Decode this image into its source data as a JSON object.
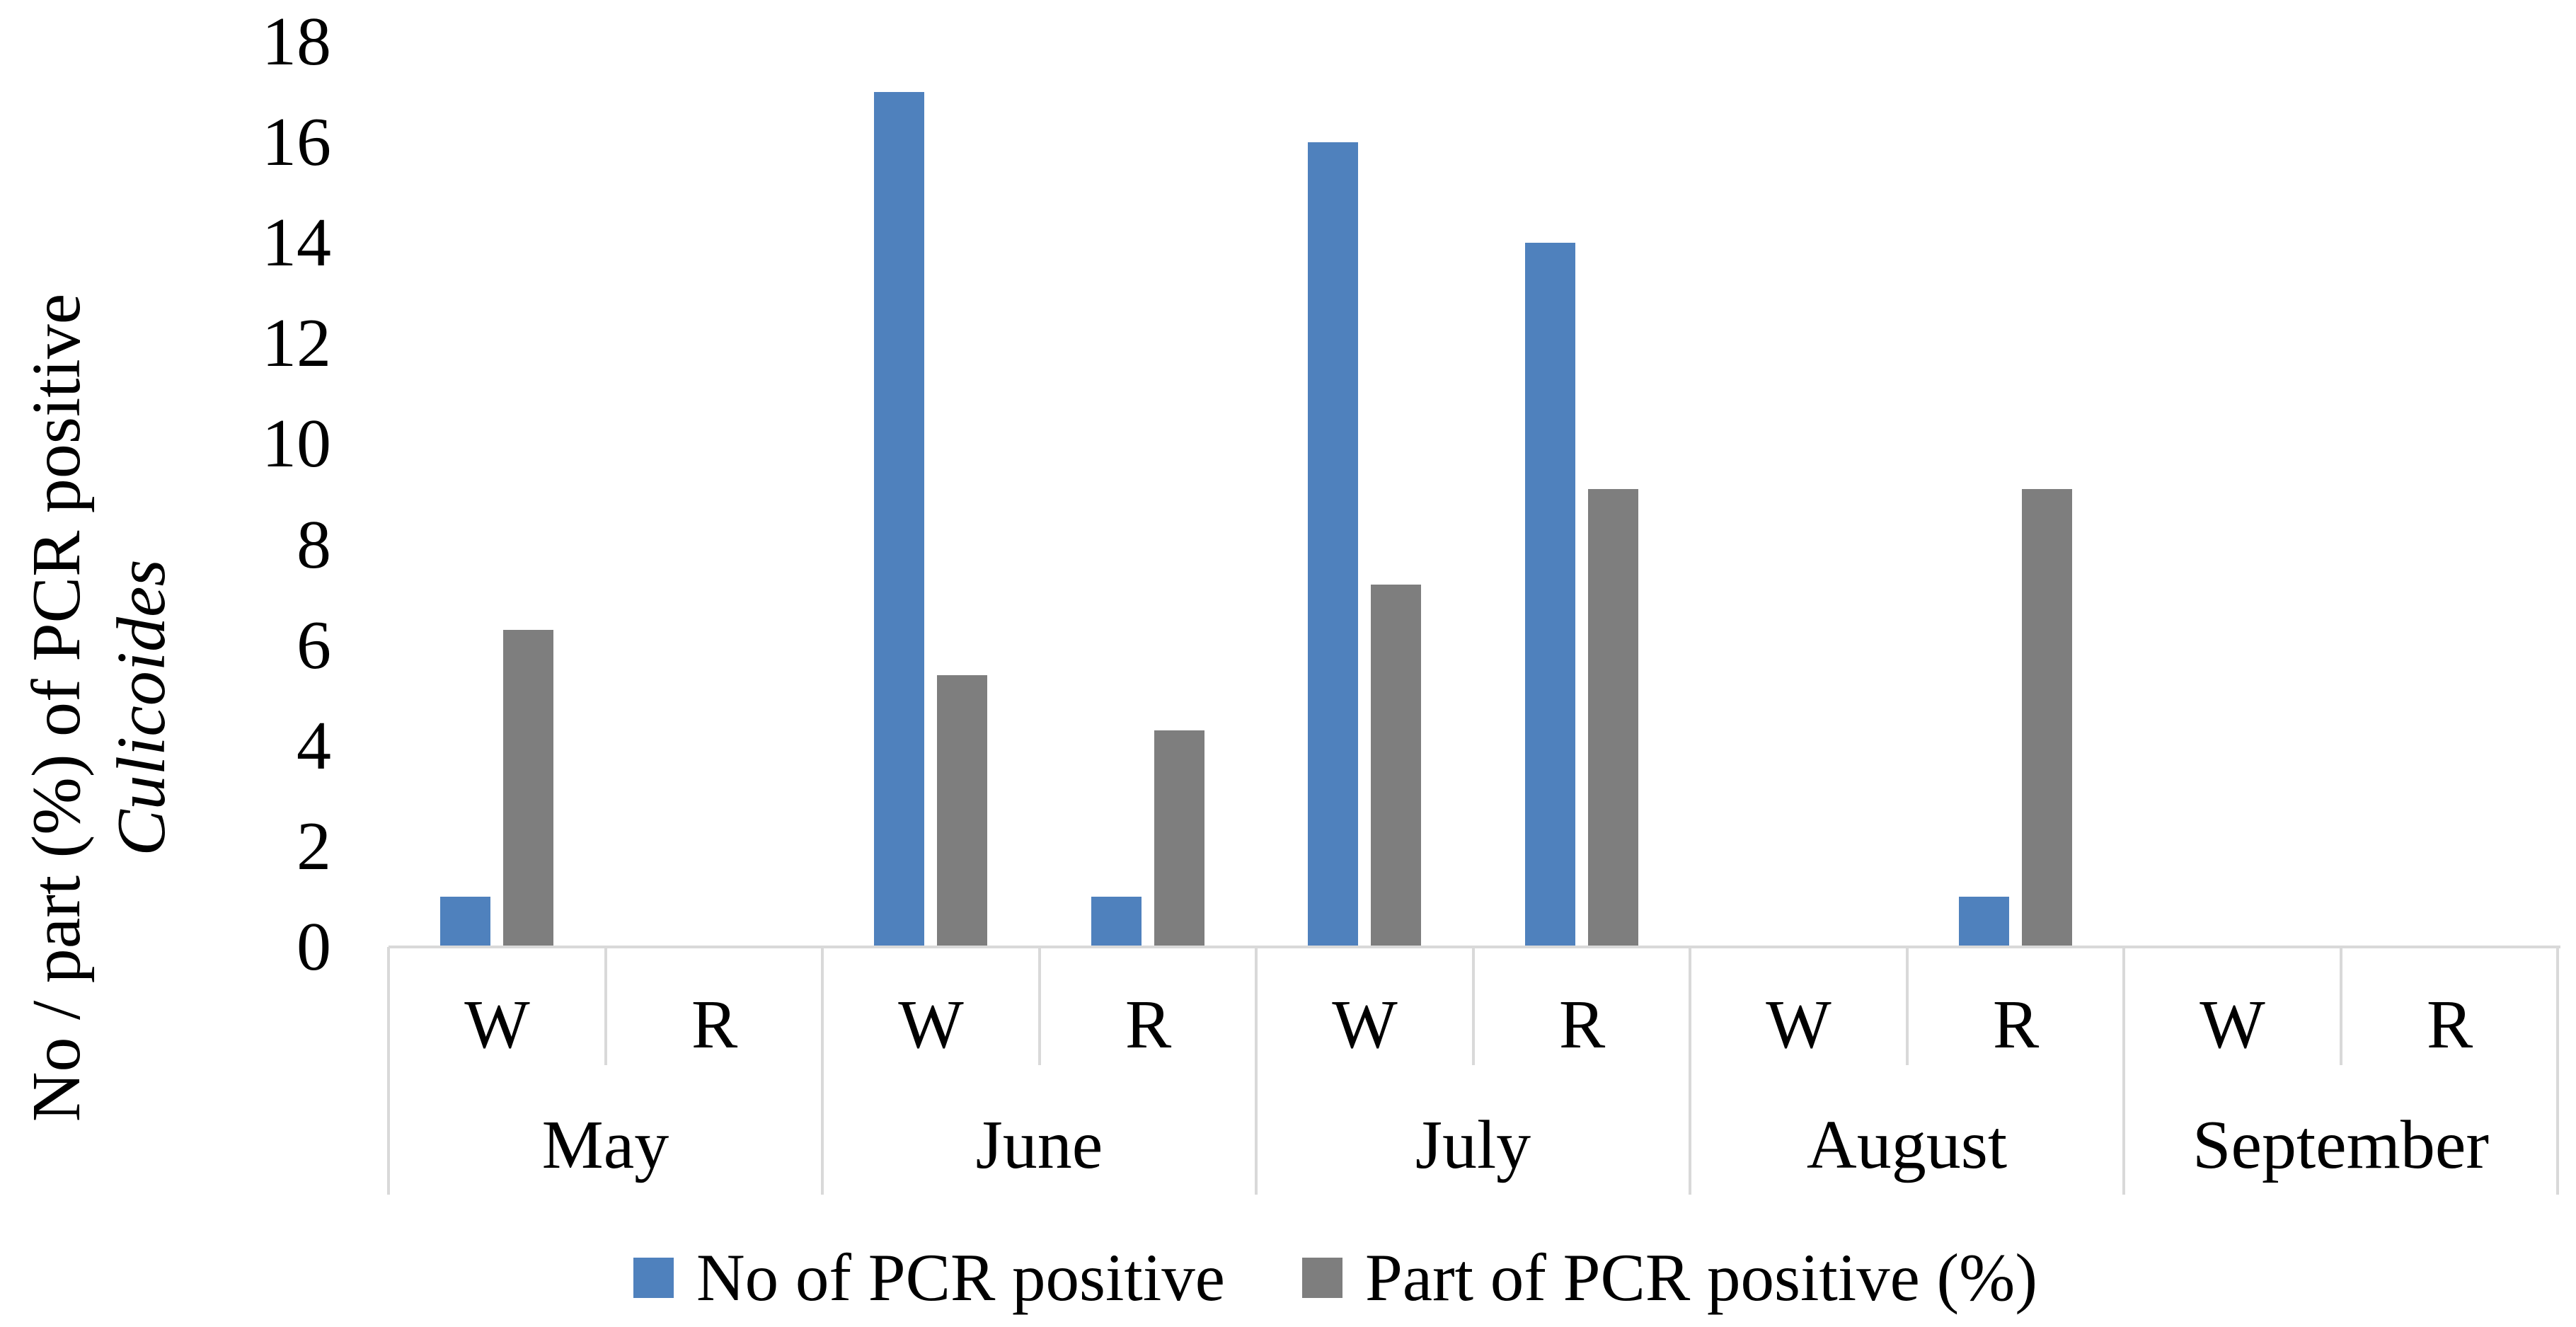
{
  "chart": {
    "y_axis_title_line1": "No / part (%) of PCR positive",
    "y_axis_title_line2": "Culicoides"
  },
  "legend": {
    "items": [
      {
        "label": "No of PCR positive",
        "color": "#4F81BD"
      },
      {
        "label": "Part of PCR positive (%)",
        "color": "#7E7E7E"
      }
    ]
  },
  "chart_data": {
    "type": "bar",
    "title": "",
    "ylabel": "No / part (%) of PCR positive Culicoides",
    "xlabel": "",
    "ylim": [
      0,
      18
    ],
    "y_ticks": [
      0,
      2,
      4,
      6,
      8,
      10,
      12,
      14,
      16,
      18
    ],
    "months": [
      "May",
      "June",
      "July",
      "August",
      "September"
    ],
    "sub_categories": [
      "W",
      "R"
    ],
    "categories": [
      "May W",
      "May R",
      "June W",
      "June R",
      "July W",
      "July R",
      "August W",
      "August R",
      "September W",
      "September R"
    ],
    "series": [
      {
        "name": "No of PCR positive",
        "color": "#4F81BD",
        "values": [
          1,
          0,
          17,
          1,
          16,
          14,
          0,
          1,
          0,
          0
        ]
      },
      {
        "name": "Part of PCR positive (%)",
        "color": "#7E7E7E",
        "values": [
          6.3,
          0,
          5.4,
          4.3,
          7.2,
          9.1,
          0,
          9.1,
          0,
          0
        ]
      }
    ],
    "grid": false,
    "legend_position": "bottom",
    "axis_color": "#D9D9D9",
    "background": "#FFFFFF"
  }
}
